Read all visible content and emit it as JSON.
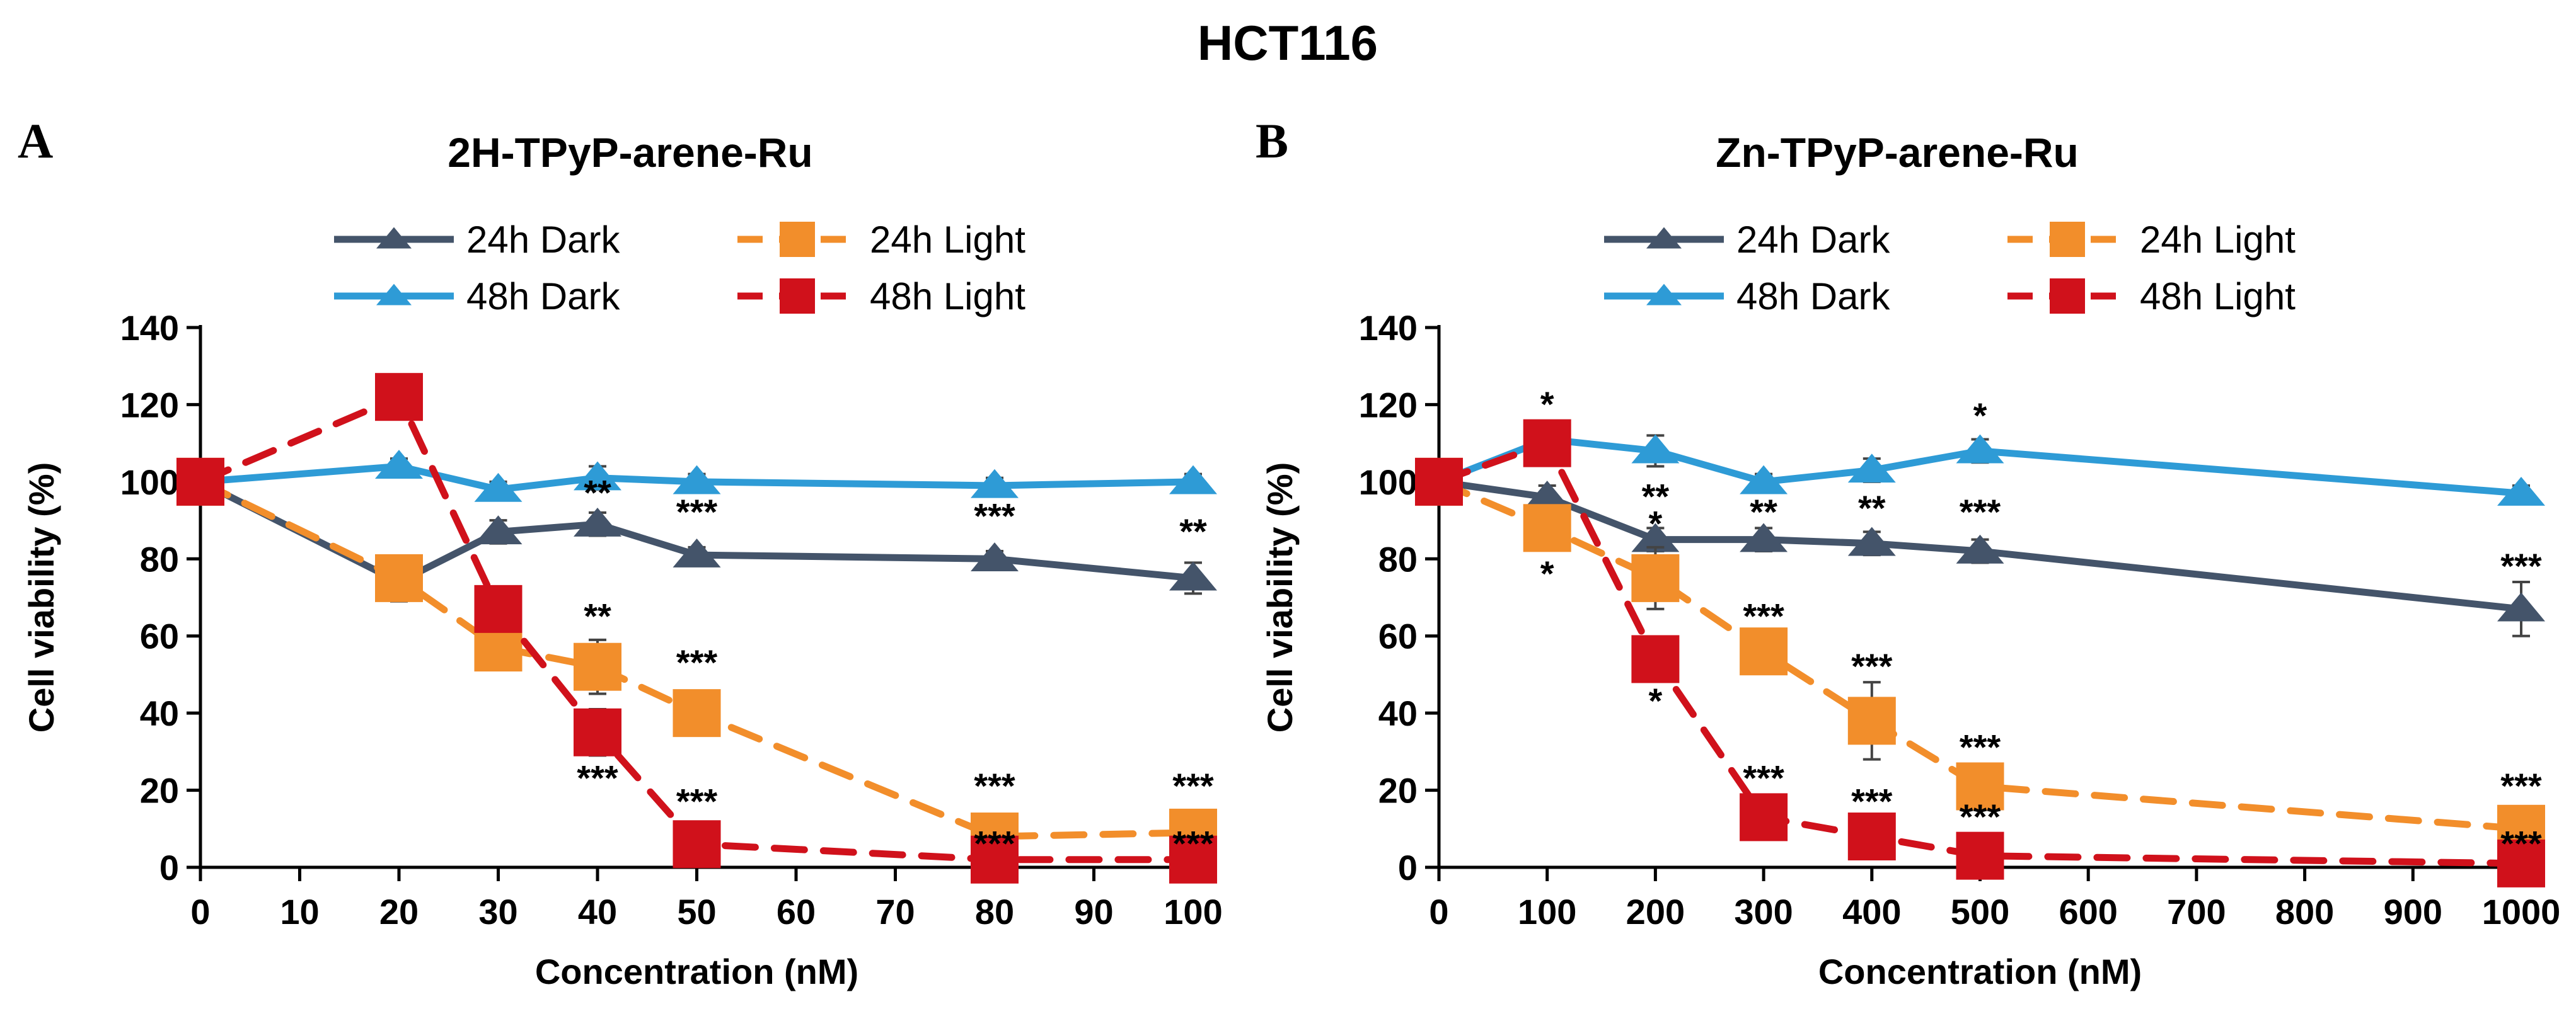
{
  "figure_title": "HCT116",
  "colors": {
    "24h_dark": "#44546A",
    "48h_dark": "#2E9BD6",
    "24h_light": "#F28E2B",
    "48h_light": "#D0111B"
  },
  "chart_data": [
    {
      "panel": "A",
      "type": "line",
      "title": "2H-TPyP-arene-Ru",
      "xlabel": "Concentration (nM)",
      "ylabel": "Cell viability (%)",
      "x_scale": "categorical",
      "categories": [
        "0",
        "10",
        "20",
        "30",
        "40",
        "50",
        "60",
        "70",
        "80",
        "90",
        "100"
      ],
      "ylim": [
        0,
        140
      ],
      "yticks": [
        0,
        20,
        40,
        60,
        80,
        100,
        120,
        140
      ],
      "series": [
        {
          "name": "24h Dark",
          "color": "#44546A",
          "marker": "triangle",
          "dash": "solid",
          "x": [
            "0",
            "20",
            "30",
            "40",
            "50",
            "80",
            "100"
          ],
          "values": [
            100,
            74,
            87,
            89,
            81,
            80,
            75
          ],
          "errors": [
            0,
            5,
            3,
            3,
            2,
            2,
            4
          ]
        },
        {
          "name": "48h Dark",
          "color": "#2E9BD6",
          "marker": "triangle",
          "dash": "solid",
          "x": [
            "0",
            "20",
            "30",
            "40",
            "50",
            "80",
            "100"
          ],
          "values": [
            100,
            104,
            98,
            101,
            100,
            99,
            100
          ],
          "errors": [
            0,
            2,
            2,
            3,
            2,
            2,
            2
          ]
        },
        {
          "name": "24h Light",
          "color": "#F28E2B",
          "marker": "square",
          "dash": "dashed",
          "x": [
            "0",
            "20",
            "30",
            "40",
            "50",
            "80",
            "100"
          ],
          "values": [
            100,
            75,
            57,
            52,
            40,
            8,
            9
          ],
          "errors": [
            0,
            3,
            3,
            7,
            3,
            2,
            2
          ]
        },
        {
          "name": "48h Light",
          "color": "#D0111B",
          "marker": "square",
          "dash": "dashed",
          "x": [
            "0",
            "20",
            "30",
            "40",
            "50",
            "80",
            "100"
          ],
          "values": [
            100,
            122,
            67,
            35,
            6,
            2,
            2
          ],
          "errors": [
            0,
            3,
            4,
            6,
            2,
            1,
            1
          ]
        }
      ],
      "annotations": [
        {
          "x": "40",
          "y": 94,
          "text": "**"
        },
        {
          "x": "50",
          "y": 89,
          "text": "***"
        },
        {
          "x": "80",
          "y": 88,
          "text": "***"
        },
        {
          "x": "100",
          "y": 84,
          "text": "**"
        },
        {
          "x": "40",
          "y": 62,
          "text": "**"
        },
        {
          "x": "50",
          "y": 50,
          "text": "***"
        },
        {
          "x": "40",
          "y": 20,
          "text": "***"
        },
        {
          "x": "50",
          "y": 14,
          "text": "***"
        },
        {
          "x": "80",
          "y": 18,
          "text": "***"
        },
        {
          "x": "100",
          "y": 18,
          "text": "***"
        },
        {
          "x": "80",
          "y": 3,
          "text": "***"
        },
        {
          "x": "100",
          "y": 3,
          "text": "***"
        }
      ]
    },
    {
      "panel": "B",
      "type": "line",
      "title": "Zn-TPyP-arene-Ru",
      "xlabel": "Concentration (nM)",
      "ylabel": "Cell viability (%)",
      "x_scale": "categorical",
      "categories": [
        "0",
        "100",
        "200",
        "300",
        "400",
        "500",
        "600",
        "700",
        "800",
        "900",
        "1000"
      ],
      "ylim": [
        0,
        140
      ],
      "yticks": [
        0,
        20,
        40,
        60,
        80,
        100,
        120,
        140
      ],
      "series": [
        {
          "name": "24h Dark",
          "color": "#44546A",
          "marker": "triangle",
          "dash": "solid",
          "x": [
            "0",
            "100",
            "200",
            "300",
            "400",
            "500",
            "1000"
          ],
          "values": [
            100,
            96,
            85,
            85,
            84,
            82,
            67
          ],
          "errors": [
            0,
            3,
            3,
            3,
            3,
            3,
            7
          ]
        },
        {
          "name": "48h Dark",
          "color": "#2E9BD6",
          "marker": "triangle",
          "dash": "solid",
          "x": [
            "0",
            "100",
            "200",
            "300",
            "400",
            "500",
            "1000"
          ],
          "values": [
            100,
            111,
            108,
            100,
            103,
            108,
            97
          ],
          "errors": [
            0,
            3,
            4,
            2,
            3,
            3,
            2
          ]
        },
        {
          "name": "24h Light",
          "color": "#F28E2B",
          "marker": "square",
          "dash": "dashed",
          "x": [
            "0",
            "100",
            "200",
            "300",
            "400",
            "500",
            "1000"
          ],
          "values": [
            100,
            88,
            75,
            56,
            38,
            21,
            10
          ],
          "errors": [
            0,
            4,
            8,
            3,
            10,
            3,
            2
          ]
        },
        {
          "name": "48h Light",
          "color": "#D0111B",
          "marker": "square",
          "dash": "dashed",
          "x": [
            "0",
            "100",
            "200",
            "300",
            "400",
            "500",
            "1000"
          ],
          "values": [
            100,
            110,
            54,
            13,
            8,
            3,
            1
          ],
          "errors": [
            0,
            3,
            3,
            2,
            2,
            1,
            1
          ]
        }
      ],
      "annotations": [
        {
          "x": "100",
          "y": 117,
          "text": "*"
        },
        {
          "x": "500",
          "y": 114,
          "text": "*"
        },
        {
          "x": "200",
          "y": 93,
          "text": "**"
        },
        {
          "x": "200",
          "y": 86,
          "text": "*"
        },
        {
          "x": "300",
          "y": 89,
          "text": "**"
        },
        {
          "x": "400",
          "y": 90,
          "text": "**"
        },
        {
          "x": "500",
          "y": 89,
          "text": "***"
        },
        {
          "x": "1000",
          "y": 75,
          "text": "***"
        },
        {
          "x": "100",
          "y": 73,
          "text": "*"
        },
        {
          "x": "300",
          "y": 62,
          "text": "***"
        },
        {
          "x": "400",
          "y": 49,
          "text": "***"
        },
        {
          "x": "200",
          "y": 40,
          "text": "*"
        },
        {
          "x": "500",
          "y": 28,
          "text": "***"
        },
        {
          "x": "300",
          "y": 20,
          "text": "***"
        },
        {
          "x": "400",
          "y": 14,
          "text": "***"
        },
        {
          "x": "500",
          "y": 10,
          "text": "***"
        },
        {
          "x": "1000",
          "y": 18,
          "text": "***"
        },
        {
          "x": "1000",
          "y": 3,
          "text": "***"
        }
      ]
    }
  ]
}
